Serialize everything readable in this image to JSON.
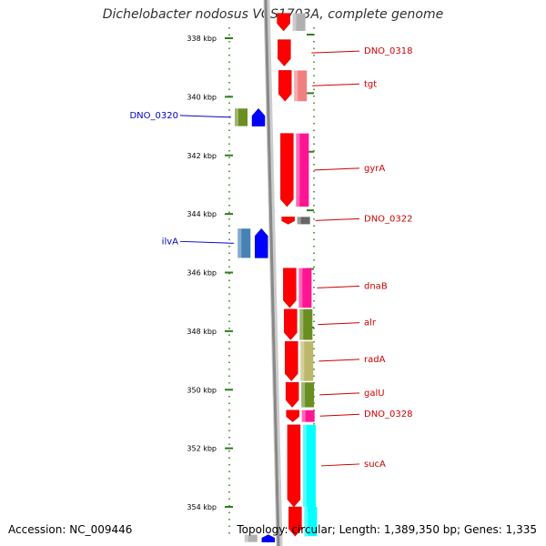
{
  "title": "Dichelobacter nodosus VCS1703A, complete genome",
  "footer": {
    "accession": "Accession: NC_009446",
    "topology": "Topology: circular; Length: 1,389,350 bp; Genes: 1,335"
  },
  "colors": {
    "forward_label": "#cc0000",
    "reverse_label": "#0000cc",
    "tick": "#2e7d1e",
    "backbone": "#888888"
  },
  "ruler": {
    "ticks": [
      {
        "kbp": 338,
        "label": "338 kbp"
      },
      {
        "kbp": 340,
        "label": "340 kbp"
      },
      {
        "kbp": 342,
        "label": "342 kbp"
      },
      {
        "kbp": 344,
        "label": "344 kbp"
      },
      {
        "kbp": 346,
        "label": "346 kbp"
      },
      {
        "kbp": 348,
        "label": "348 kbp"
      },
      {
        "kbp": 350,
        "label": "350 kbp"
      },
      {
        "kbp": 352,
        "label": "352 kbp"
      },
      {
        "kbp": 354,
        "label": "354 kbp"
      }
    ]
  },
  "forward_genes": [
    {
      "name": "",
      "start_kbp": 337.15,
      "end_kbp": 337.75,
      "cog_color": "#b0b0b0"
    },
    {
      "name": "DNO_0318",
      "start_kbp": 338.05,
      "end_kbp": 338.95,
      "cog_color": ""
    },
    {
      "name": "tgt",
      "start_kbp": 339.1,
      "end_kbp": 340.15,
      "cog_color": "#f08080"
    },
    {
      "name": "gyrA",
      "start_kbp": 341.25,
      "end_kbp": 343.75,
      "cog_color": "#ff1493"
    },
    {
      "name": "DNO_0322",
      "start_kbp": 344.1,
      "end_kbp": 344.35,
      "cog_color": "#666666"
    },
    {
      "name": "dnaB",
      "start_kbp": 345.85,
      "end_kbp": 347.2,
      "cog_color": "#ff1493"
    },
    {
      "name": "alr",
      "start_kbp": 347.25,
      "end_kbp": 348.3,
      "cog_color": "#6b8e23"
    },
    {
      "name": "radA",
      "start_kbp": 348.35,
      "end_kbp": 349.7,
      "cog_color": "#bdb76b"
    },
    {
      "name": "galU",
      "start_kbp": 349.75,
      "end_kbp": 350.6,
      "cog_color": "#6b8e23"
    },
    {
      "name": "DNO_0328",
      "start_kbp": 350.7,
      "end_kbp": 351.1,
      "cog_color": "#ff1493"
    },
    {
      "name": "sucA",
      "start_kbp": 351.2,
      "end_kbp": 354.0,
      "cog_color": "#00ffff"
    },
    {
      "name": "",
      "start_kbp": 354.0,
      "end_kbp": 355.0,
      "cog_color": "#00ffff"
    }
  ],
  "reverse_genes": [
    {
      "name": "DNO_0320",
      "start_kbp": 340.4,
      "end_kbp": 341.0,
      "cog_color": "#6b8e23"
    },
    {
      "name": "ilvA",
      "start_kbp": 344.5,
      "end_kbp": 345.5,
      "cog_color": "#4682b4"
    },
    {
      "name": "",
      "start_kbp": 354.95,
      "end_kbp": 355.2,
      "cog_color": "#b0b0b0"
    }
  ]
}
